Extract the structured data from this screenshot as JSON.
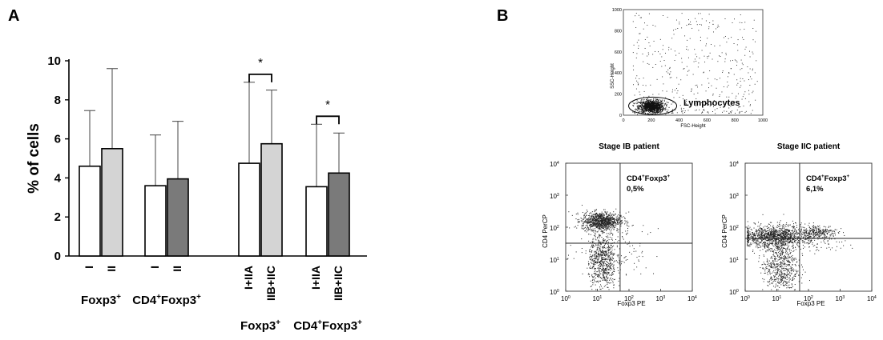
{
  "panel_a_letter": "A",
  "panel_b_letter": "B",
  "chart_data": [
    {
      "type": "bar",
      "ylabel": "% of cells",
      "ylim": [
        0,
        10
      ],
      "yticks": [
        "0",
        "2",
        "4",
        "6",
        "8",
        "10"
      ],
      "groups": [
        {
          "label": "Foxp3",
          "label_sup": "+",
          "tick_labels": [
            "I",
            "II"
          ],
          "values": [
            4.6,
            5.5
          ],
          "errors": [
            7.45,
            9.6
          ],
          "colors": [
            "#ffffff",
            "#d4d4d4"
          ],
          "significance": ""
        },
        {
          "label": "CD4",
          "label_sup": "+",
          "label2": "Foxp3",
          "label2_sup": "+",
          "tick_labels": [
            "I",
            "II"
          ],
          "values": [
            3.6,
            3.95
          ],
          "errors": [
            6.2,
            6.9
          ],
          "colors": [
            "#ffffff",
            "#7a7a7a"
          ],
          "significance": ""
        },
        {
          "label": "Foxp3",
          "label_sup": "+",
          "tick_labels": [
            "I+IIA",
            "IIB+IIC"
          ],
          "values": [
            4.75,
            5.75
          ],
          "errors": [
            8.9,
            8.5
          ],
          "colors": [
            "#ffffff",
            "#d4d4d4"
          ],
          "significance": "*"
        },
        {
          "label": "CD4",
          "label_sup": "+",
          "label2": "Foxp3",
          "label2_sup": "+",
          "tick_labels": [
            "I+IIA",
            "IIB+IIC"
          ],
          "values": [
            3.55,
            4.25
          ],
          "errors": [
            6.75,
            6.3
          ],
          "colors": [
            "#ffffff",
            "#7a7a7a"
          ],
          "significance": "*"
        }
      ]
    },
    {
      "type": "scatter",
      "xlabel": "FSC-Height",
      "ylabel": "SSC-Height",
      "xlim": [
        0,
        1000
      ],
      "ylim": [
        0,
        1000
      ],
      "xticks": [
        "0",
        "200",
        "400",
        "600",
        "800",
        "1000"
      ],
      "yticks": [
        "0",
        "200",
        "400",
        "600",
        "800",
        "1000"
      ],
      "gate_label": "Lymphocytes"
    },
    {
      "type": "scatter",
      "title": "Stage IB patient",
      "xlabel": "Foxp3 PE",
      "ylabel": "CD4 PerCP",
      "log_scale": true,
      "quadrant_label": "CD4",
      "quadrant_label_sup": "+",
      "quadrant_label2": "Foxp3",
      "quadrant_label2_sup": "+",
      "quadrant_value": "0,5%"
    },
    {
      "type": "scatter",
      "title": "Stage IIC patient",
      "xlabel": "Foxp3 PE",
      "ylabel": "CD4 PerCP",
      "log_scale": true,
      "quadrant_label": "CD4",
      "quadrant_label_sup": "+",
      "quadrant_label2": "Foxp3",
      "quadrant_label2_sup": "+",
      "quadrant_value": "6,1%"
    }
  ],
  "log_ticks": {
    "base": "10",
    "exponents": [
      "0",
      "1",
      "2",
      "3",
      "4"
    ]
  }
}
